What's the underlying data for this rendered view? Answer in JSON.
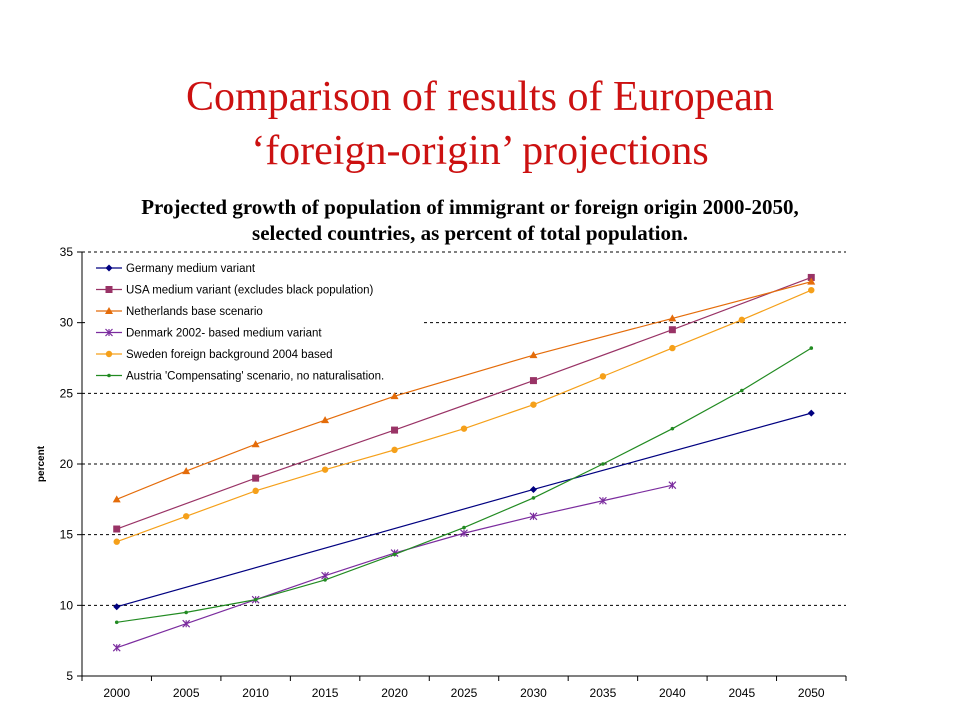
{
  "slide": {
    "title_line1": "Comparison of results of European",
    "title_line2": "‘foreign-origin’ projections"
  },
  "chart_data": {
    "type": "line",
    "title_line1": "Projected growth of  population of immigrant or foreign origin 2000-2050,",
    "title_line2": "selected countries, as percent of total population.",
    "xlabel": "",
    "ylabel": "percent",
    "categories": [
      "2000",
      "2005",
      "2010",
      "2015",
      "2020",
      "2025",
      "2030",
      "2035",
      "2040",
      "2045",
      "2050"
    ],
    "ylim": [
      5,
      35
    ],
    "yticks": [
      5,
      10,
      15,
      20,
      25,
      30,
      35
    ],
    "grid": "horizontal dashed",
    "legend_position": "top-left",
    "series": [
      {
        "name": "Germany medium variant",
        "color": "#000080",
        "marker": "diamond",
        "values": [
          9.9,
          null,
          null,
          null,
          null,
          null,
          18.2,
          null,
          null,
          null,
          23.6
        ]
      },
      {
        "name": "USA medium variant (excludes black population)",
        "color": "#993366",
        "marker": "square",
        "values": [
          15.4,
          null,
          19.0,
          null,
          22.4,
          null,
          25.9,
          null,
          29.5,
          null,
          33.2
        ]
      },
      {
        "name": "Netherlands base scenario",
        "color": "#e46c0a",
        "marker": "triangle",
        "values": [
          17.5,
          19.5,
          21.4,
          23.1,
          24.8,
          null,
          27.7,
          null,
          30.3,
          null,
          32.9
        ]
      },
      {
        "name": "Denmark 2002- based medium variant",
        "color": "#7b2c9e",
        "marker": "star",
        "values": [
          7.0,
          8.7,
          10.4,
          12.1,
          13.7,
          15.1,
          16.3,
          17.4,
          18.5,
          null,
          null
        ]
      },
      {
        "name": "Sweden foreign background 2004 based",
        "color": "#f5a01a",
        "marker": "circle",
        "values": [
          14.5,
          16.3,
          18.1,
          19.6,
          21.0,
          22.5,
          24.2,
          26.2,
          28.2,
          30.2,
          32.3
        ]
      },
      {
        "name": "Austria 'Compensating' scenario, no naturalisation.",
        "color": "#228b22",
        "marker": "dot",
        "values": [
          8.8,
          9.5,
          10.4,
          11.8,
          13.6,
          15.5,
          17.6,
          20.0,
          22.5,
          25.2,
          28.2
        ]
      }
    ]
  }
}
